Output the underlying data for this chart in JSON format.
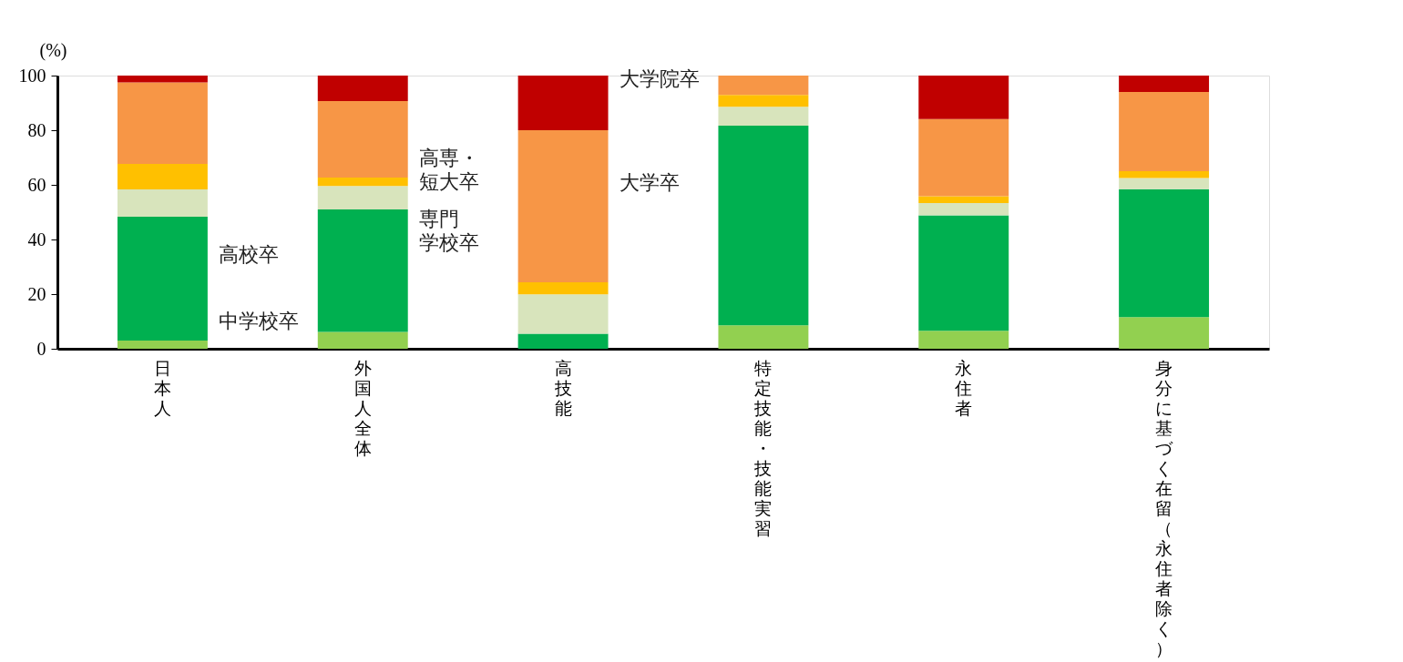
{
  "chart_data": {
    "type": "bar",
    "stacked": true,
    "categories": [
      "日本人",
      "外国人全体",
      "高技能",
      "特定技能・技能実習",
      "永住者",
      "身分に基づく在留（永住者除く）"
    ],
    "series": [
      {
        "name": "中学校卒",
        "color": "#92d050",
        "values": [
          3,
          6.2,
          0,
          8.6,
          6.6,
          11.6
        ]
      },
      {
        "name": "高校卒",
        "color": "#00b050",
        "values": [
          45.3,
          44.8,
          5.5,
          73.1,
          42.2,
          46.8
        ]
      },
      {
        "name": "専門学校卒",
        "color": "#d8e4bc",
        "values": [
          10,
          8.6,
          14.4,
          6.9,
          4.5,
          4.1
        ]
      },
      {
        "name": "高専・短大卒",
        "color": "#ffc000",
        "values": [
          9.4,
          3.1,
          4.4,
          4.3,
          2.5,
          2.5
        ]
      },
      {
        "name": "大学卒",
        "color": "#f79646",
        "values": [
          29.8,
          28,
          55.7,
          7.1,
          28.3,
          29
        ]
      },
      {
        "name": "大学院卒",
        "color": "#c00000",
        "values": [
          2.5,
          9.3,
          20,
          0,
          15.9,
          6
        ]
      }
    ],
    "ylabel": "(%)",
    "ylim": [
      0,
      100
    ],
    "yticks": [
      0,
      20,
      40,
      60,
      80,
      100
    ],
    "grid": false,
    "legend": false
  }
}
